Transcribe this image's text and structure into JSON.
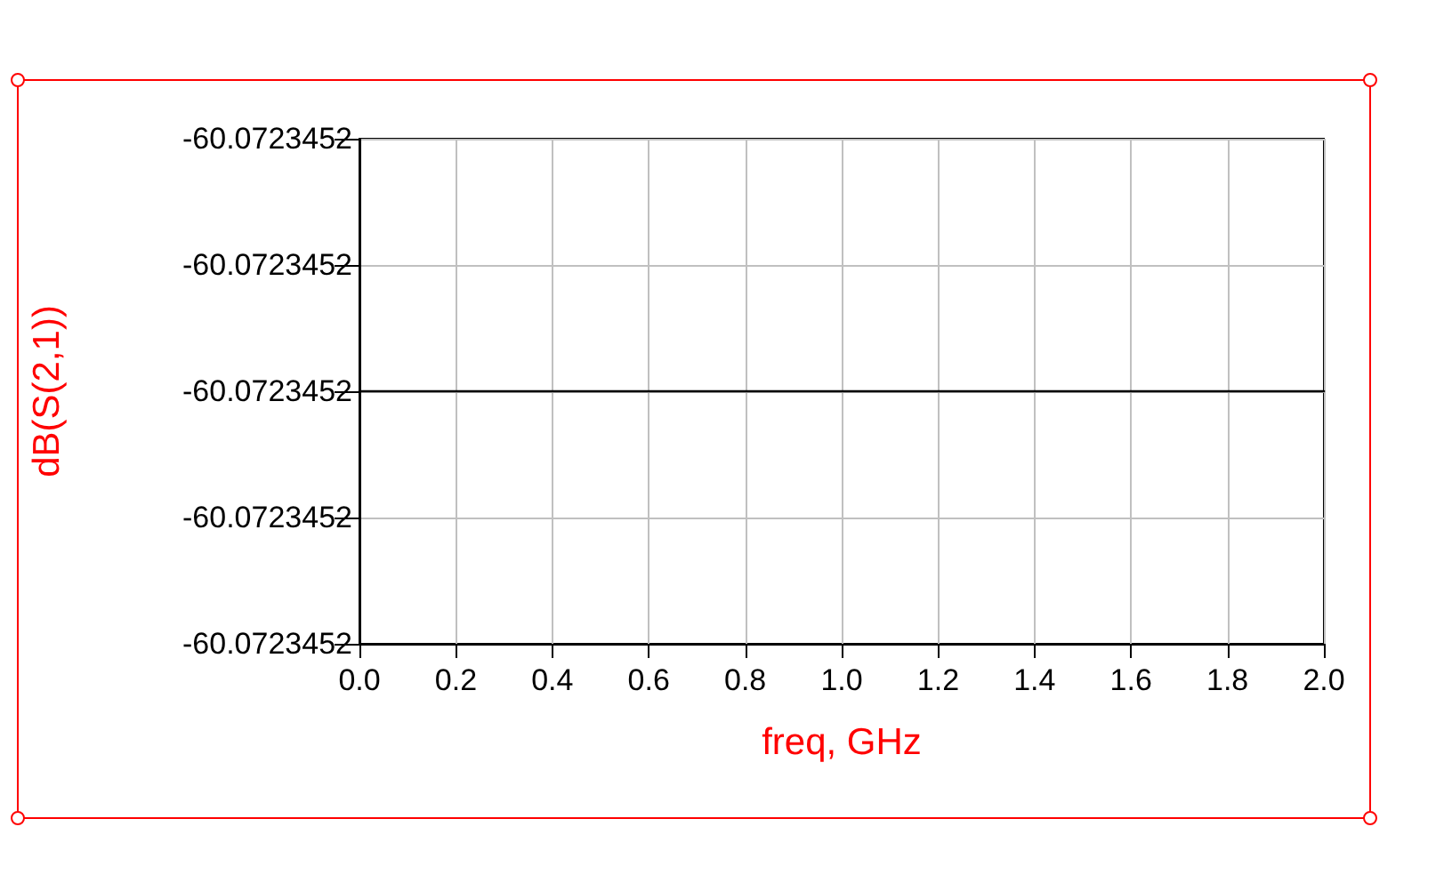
{
  "chart_data": {
    "type": "line",
    "xlabel": "freq, GHz",
    "ylabel": "dB(S(2,1))",
    "x": [
      0,
      2
    ],
    "series": [
      {
        "color": "#000000",
        "values": [
          -60.0723452,
          -60.0723452
        ]
      }
    ],
    "xlim": [
      0,
      2
    ],
    "xticks": [
      {
        "value": 0,
        "label": "0.0"
      },
      {
        "value": 0.2,
        "label": "0.2"
      },
      {
        "value": 0.4,
        "label": "0.4"
      },
      {
        "value": 0.6,
        "label": "0.6"
      },
      {
        "value": 0.8,
        "label": "0.8"
      },
      {
        "value": 1,
        "label": "1.0"
      },
      {
        "value": 1.2,
        "label": "1.2"
      },
      {
        "value": 1.4,
        "label": "1.4"
      },
      {
        "value": 1.6,
        "label": "1.6"
      },
      {
        "value": 1.8,
        "label": "1.8"
      },
      {
        "value": 2,
        "label": "2.0"
      }
    ],
    "ylim": [
      -60.07234522,
      -60.07234518
    ],
    "yticks": [
      {
        "value": -60.07234522,
        "label": "-60.0723452"
      },
      {
        "value": -60.07234521,
        "label": "-60.0723452"
      },
      {
        "value": -60.0723452,
        "label": "-60.0723452"
      },
      {
        "value": -60.07234519,
        "label": "-60.0723452"
      },
      {
        "value": -60.07234518,
        "label": "-60.0723452"
      }
    ],
    "grid": true,
    "marker": "none",
    "line_style": "solid"
  }
}
